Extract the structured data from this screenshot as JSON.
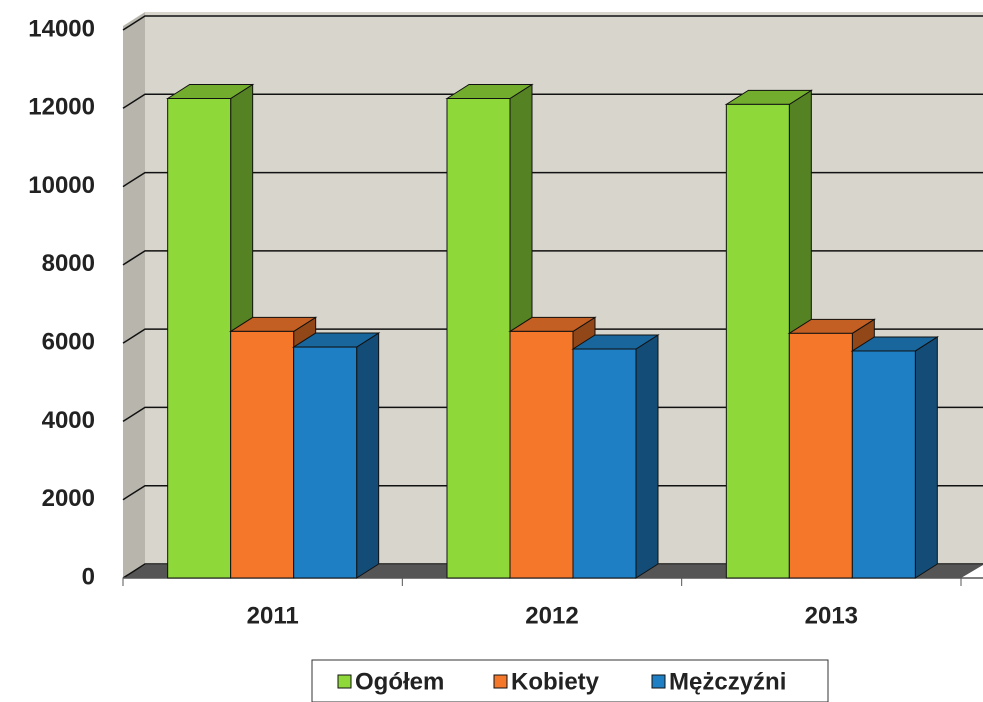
{
  "chart_data": {
    "type": "bar3d",
    "categories": [
      "2011",
      "2012",
      "2013"
    ],
    "series": [
      {
        "name": "Ogółem",
        "color": "#8ed83a",
        "values": [
          12250,
          12250,
          12100
        ]
      },
      {
        "name": "Kobiety",
        "color": "#f4772a",
        "values": [
          6300,
          6300,
          6250
        ]
      },
      {
        "name": "Mężczyźni",
        "color": "#1f7fc4",
        "values": [
          5900,
          5850,
          5800
        ]
      }
    ],
    "ylim": [
      0,
      14000
    ],
    "yticks": [
      0,
      2000,
      4000,
      6000,
      8000,
      10000,
      12000,
      14000
    ],
    "grid": true,
    "legend": "bottom"
  }
}
